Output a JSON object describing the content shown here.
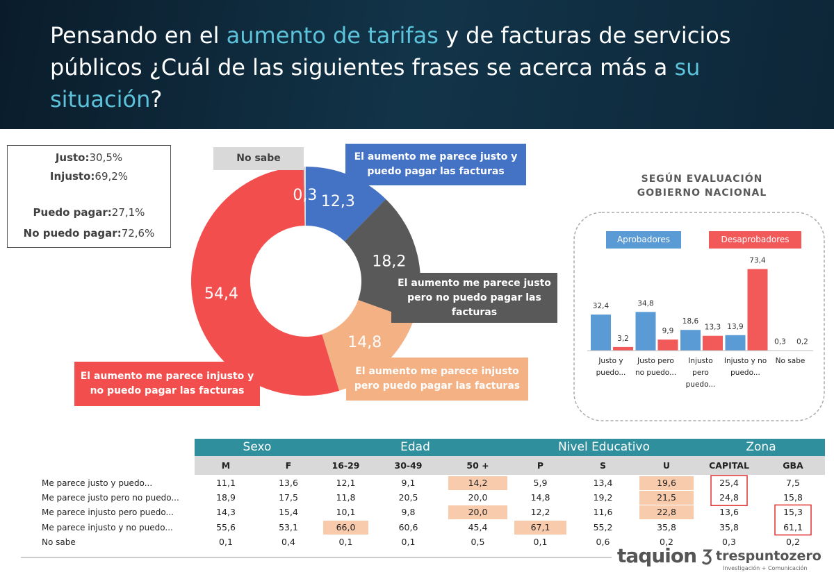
{
  "header": {
    "title_segments": [
      {
        "text": "Pensando en el",
        "color": "#ffffff"
      },
      {
        "text": "aumento de tarifas",
        "color": "#5cc3da"
      },
      {
        "text": "y de facturas de servicios públicos ¿Cuál de las siguientes frases se acerca más a",
        "color": "#ffffff"
      },
      {
        "text": "su",
        "color": "#5cc3da"
      },
      {
        "text": "situación",
        "color": "#5cc3da"
      },
      {
        "text": "?",
        "color": "#ffffff"
      }
    ]
  },
  "summary": [
    {
      "label": "Justo:",
      "value": "30,5%"
    },
    {
      "label": "Injusto:",
      "value": "69,2%"
    },
    {
      "label": "Puedo pagar:",
      "value": "27,1%"
    },
    {
      "label": "No puedo pagar:",
      "value": "72,6%"
    }
  ],
  "chart_data": [
    {
      "type": "pie",
      "categories": [
        "El aumento me parece justo y puedo pagar las facturas",
        "El aumento me parece justo pero no puedo pagar las facturas",
        "El aumento me parece injusto pero puedo pagar las facturas",
        "El aumento me parece injusto y no puedo pagar las facturas",
        "No sabe"
      ],
      "values": [
        12.3,
        18.2,
        14.8,
        54.4,
        0.3
      ],
      "value_labels": [
        "12,3",
        "18,2",
        "14,8",
        "54,4",
        "0,3"
      ],
      "colors": [
        "#4472c4",
        "#595959",
        "#f4b183",
        "#f24e4e",
        "#d9d9d9"
      ]
    },
    {
      "type": "bar",
      "title": "SEGÚN EVALUACIÓN GOBIERNO NACIONAL",
      "categories": [
        "Justo y puedo...",
        "Justo pero no puedo...",
        "Injusto pero puedo...",
        "Injusto y no puedo...",
        "No sabe"
      ],
      "series": [
        {
          "name": "Aprobadores",
          "color": "#5b9bd5",
          "values": [
            32.4,
            34.8,
            18.6,
            13.9,
            0.3
          ],
          "value_labels": [
            "32,4",
            "34,8",
            "18,6",
            "13,9",
            "0,3"
          ]
        },
        {
          "name": "Desaprobadores",
          "color": "#f25a5a",
          "values": [
            3.2,
            9.9,
            13.3,
            73.4,
            0.2
          ],
          "value_labels": [
            "3,2",
            "9,9",
            "13,3",
            "73,4",
            "0,2"
          ]
        }
      ]
    }
  ],
  "table": {
    "groups": [
      {
        "label": "Sexo",
        "span": 2
      },
      {
        "label": "Edad",
        "span": 3
      },
      {
        "label": "Nivel Educativo",
        "span": 3
      },
      {
        "label": "Zona",
        "span": 2
      }
    ],
    "columns": [
      "M",
      "F",
      "16-29",
      "30-49",
      "50 +",
      "P",
      "S",
      "U",
      "CAPITAL",
      "GBA"
    ],
    "rows": [
      {
        "label": "Me parece justo y puedo...",
        "values": [
          "11,1",
          "13,6",
          "12,1",
          "9,1",
          "14,2",
          "5,9",
          "13,4",
          "19,6",
          "25,4",
          "7,5"
        ]
      },
      {
        "label": "Me parece justo pero no puedo...",
        "values": [
          "18,9",
          "17,5",
          "11,8",
          "20,5",
          "20,0",
          "14,8",
          "19,2",
          "21,5",
          "24,8",
          "15,8"
        ]
      },
      {
        "label": "Me parece injusto pero puedo...",
        "values": [
          "14,3",
          "15,4",
          "10,1",
          "9,8",
          "20,0",
          "12,2",
          "11,6",
          "22,8",
          "13,6",
          "15,3"
        ]
      },
      {
        "label": "Me parece injusto y no puedo...",
        "values": [
          "55,6",
          "53,1",
          "66,0",
          "60,6",
          "45,4",
          "67,1",
          "55,2",
          "35,8",
          "35,8",
          "61,1"
        ]
      },
      {
        "label": "No sabe",
        "values": [
          "0,1",
          "0,4",
          "0,1",
          "0,1",
          "0,5",
          "0,1",
          "0,6",
          "0,2",
          "0,3",
          "0,2"
        ]
      }
    ],
    "highlighted_cells": [
      [
        0,
        4
      ],
      [
        0,
        7
      ],
      [
        1,
        7
      ],
      [
        2,
        4
      ],
      [
        2,
        7
      ],
      [
        3,
        2
      ],
      [
        3,
        5
      ]
    ],
    "outlined": [
      {
        "column": 8,
        "rows": [
          0,
          1
        ]
      },
      {
        "column": 9,
        "rows": [
          2,
          3
        ]
      }
    ]
  },
  "logos": {
    "taquion": "taquion",
    "trespuntozero": "trespuntozero",
    "tagline": "Investigación + Comunicación"
  }
}
